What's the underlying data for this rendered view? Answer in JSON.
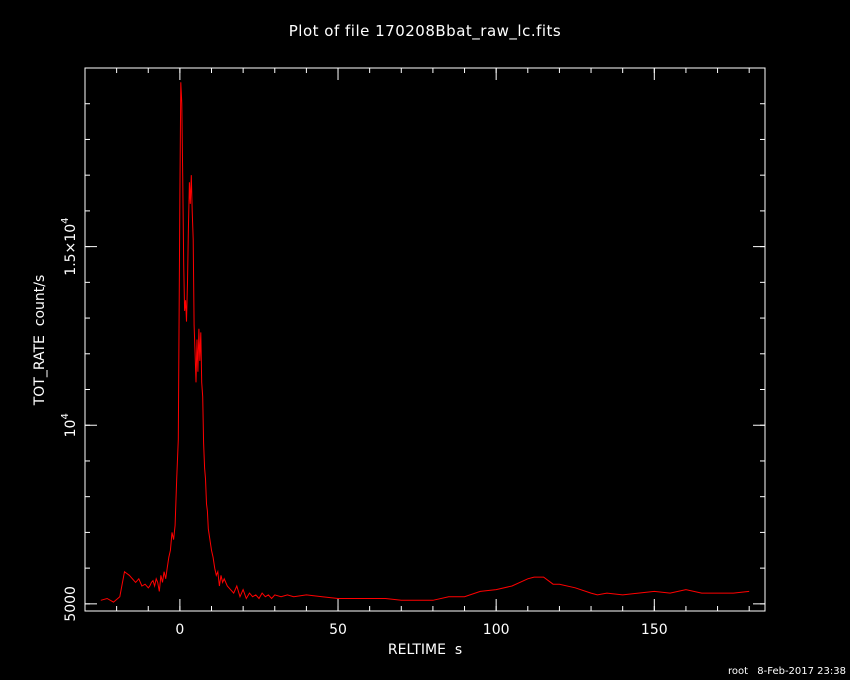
{
  "chart_data": {
    "type": "line",
    "title": "Plot of file 170208Bbat_raw_lc.fits",
    "xlabel": "RELTIME  s",
    "ylabel": "TOT_RATE  count/s",
    "xlim": [
      -30,
      185
    ],
    "ylim": [
      4800,
      20000
    ],
    "xticks": [
      {
        "value": 0,
        "label": "0"
      },
      {
        "value": 50,
        "label": "50"
      },
      {
        "value": 100,
        "label": "100"
      },
      {
        "value": 150,
        "label": "150"
      }
    ],
    "yticks": [
      {
        "value": 5000,
        "label": "5000"
      },
      {
        "value": 10000,
        "label": "10^4"
      },
      {
        "value": 15000,
        "label": "1.5×10^4"
      }
    ],
    "grid": false,
    "line_color": "#ff0000",
    "series": [
      {
        "x": [
          -25,
          -23,
          -21,
          -19,
          -17.5,
          -16,
          -14,
          -13,
          -12,
          -11,
          -10,
          -9.5,
          -9,
          -8.5,
          -8,
          -7.5,
          -7,
          -6.5,
          -6,
          -5.5,
          -5,
          -4.5,
          -4,
          -3.5,
          -3,
          -2.5,
          -2,
          -1.5,
          -1,
          -0.5,
          0,
          0.3,
          0.6,
          0.9,
          1.2,
          1.5,
          1.8,
          2.1,
          2.4,
          2.7,
          3,
          3.3,
          3.6,
          3.9,
          4.2,
          4.5,
          4.8,
          5.1,
          5.4,
          5.7,
          6,
          6.3,
          6.6,
          6.9,
          7.2,
          7.5,
          7.8,
          8.1,
          8.4,
          8.7,
          9,
          9.5,
          10,
          10.5,
          11,
          11.5,
          12,
          12.5,
          13,
          13.5,
          14,
          15,
          16,
          17,
          18,
          19,
          20,
          21,
          22,
          23,
          24,
          25,
          26,
          27,
          28,
          29,
          30,
          32,
          34,
          36,
          40,
          45,
          50,
          55,
          60,
          65,
          70,
          75,
          80,
          85,
          90,
          95,
          100,
          105,
          110,
          112,
          115,
          118,
          120,
          125,
          130,
          132,
          135,
          140,
          145,
          150,
          155,
          160,
          165,
          170,
          175,
          180
        ],
        "y": [
          5100,
          5150,
          5050,
          5200,
          5900,
          5800,
          5600,
          5700,
          5500,
          5550,
          5450,
          5500,
          5600,
          5650,
          5500,
          5700,
          5600,
          5350,
          5800,
          5600,
          5900,
          5700,
          6000,
          6300,
          6500,
          7000,
          6800,
          7200,
          8500,
          9600,
          16500,
          19600,
          19000,
          17000,
          14500,
          13200,
          13500,
          12900,
          14000,
          15500,
          16800,
          16200,
          17000,
          16000,
          15200,
          12800,
          12000,
          11200,
          12400,
          11500,
          12700,
          11800,
          12600,
          11200,
          10800,
          9500,
          8800,
          8500,
          7800,
          7600,
          7100,
          6800,
          6500,
          6300,
          6000,
          5800,
          5900,
          5500,
          5800,
          5600,
          5700,
          5500,
          5400,
          5300,
          5500,
          5200,
          5400,
          5150,
          5300,
          5200,
          5250,
          5150,
          5300,
          5200,
          5250,
          5150,
          5250,
          5200,
          5250,
          5200,
          5250,
          5200,
          5150,
          5150,
          5150,
          5150,
          5100,
          5100,
          5100,
          5200,
          5200,
          5350,
          5400,
          5500,
          5700,
          5750,
          5750,
          5550,
          5550,
          5450,
          5300,
          5250,
          5300,
          5250,
          5300,
          5350,
          5300,
          5400,
          5300,
          5300,
          5300,
          5350
        ]
      }
    ]
  },
  "footer": {
    "user": "root",
    "timestamp": "8-Feb-2017 23:38"
  }
}
